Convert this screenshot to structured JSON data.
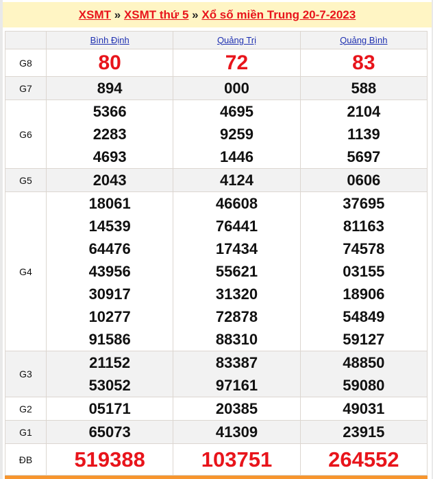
{
  "breadcrumb": {
    "items": [
      "XSMT",
      "XSMT thứ 5",
      "Xổ số miền Trung 20-7-2023"
    ],
    "separator": "»"
  },
  "provinces": [
    "Bình Định",
    "Quảng Trị",
    "Quảng Bình"
  ],
  "prizes": [
    {
      "label": "G8",
      "style": "big",
      "values": [
        [
          "80"
        ],
        [
          "72"
        ],
        [
          "83"
        ]
      ]
    },
    {
      "label": "G7",
      "style": "num",
      "values": [
        [
          "894"
        ],
        [
          "000"
        ],
        [
          "588"
        ]
      ]
    },
    {
      "label": "G6",
      "style": "num",
      "values": [
        [
          "5366",
          "2283",
          "4693"
        ],
        [
          "4695",
          "9259",
          "1446"
        ],
        [
          "2104",
          "1139",
          "5697"
        ]
      ]
    },
    {
      "label": "G5",
      "style": "num",
      "values": [
        [
          "2043"
        ],
        [
          "4124"
        ],
        [
          "0606"
        ]
      ]
    },
    {
      "label": "G4",
      "style": "num",
      "values": [
        [
          "18061",
          "14539",
          "64476",
          "43956",
          "30917",
          "10277",
          "91586"
        ],
        [
          "46608",
          "76441",
          "17434",
          "55621",
          "31320",
          "72878",
          "88310"
        ],
        [
          "37695",
          "81163",
          "74578",
          "03155",
          "18906",
          "54849",
          "59127"
        ]
      ]
    },
    {
      "label": "G3",
      "style": "num",
      "values": [
        [
          "21152",
          "53052"
        ],
        [
          "83387",
          "97161"
        ],
        [
          "48850",
          "59080"
        ]
      ]
    },
    {
      "label": "G2",
      "style": "num",
      "values": [
        [
          "05171"
        ],
        [
          "20385"
        ],
        [
          "49031"
        ]
      ]
    },
    {
      "label": "G1",
      "style": "num",
      "values": [
        [
          "65073"
        ],
        [
          "41309"
        ],
        [
          "23915"
        ]
      ]
    },
    {
      "label": "ĐB",
      "style": "bigdb",
      "values": [
        [
          "519388"
        ],
        [
          "103751"
        ],
        [
          "264552"
        ]
      ]
    }
  ],
  "colors": {
    "accent_red": "#e8141b",
    "link_blue": "#1d2fb0",
    "banner_bg": "#fff5c4",
    "bottom_bar": "#f7952e"
  }
}
